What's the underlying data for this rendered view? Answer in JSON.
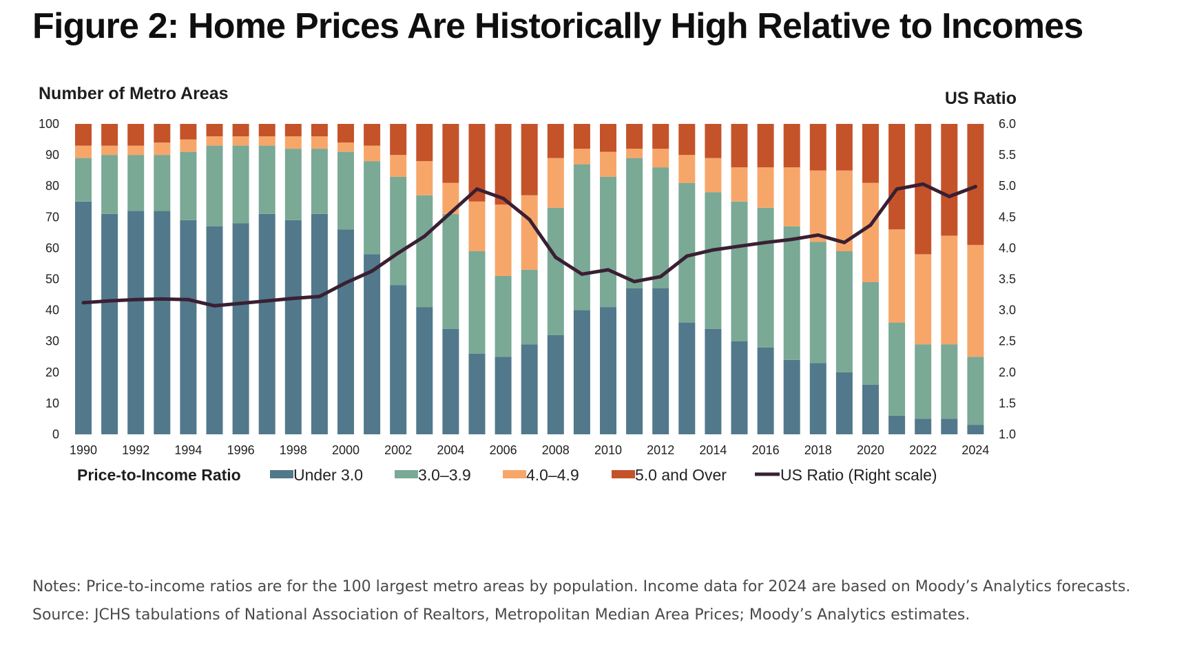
{
  "figure_title": "Figure 2: Home Prices Are Historically High Relative to Incomes",
  "notes": {
    "line1": "Notes: Price-to-income ratios are for the 100 largest metro areas by population. Income data for 2024 are based on Moody’s Analytics forecasts.",
    "line2": "Source: JCHS tabulations of National Association of Realtors, Metropolitan Median Area Prices; Moody’s Analytics estimates."
  },
  "chart_data": {
    "type": "bar",
    "stacked": true,
    "ylabel": "Number of Metro Areas",
    "y2label": "US Ratio",
    "ylim": [
      0,
      100
    ],
    "y2lim": [
      1.0,
      6.0
    ],
    "yticks": [
      0,
      10,
      20,
      30,
      40,
      50,
      60,
      70,
      80,
      90,
      100
    ],
    "y2ticks": [
      "1.0",
      "1.5",
      "2.0",
      "2.5",
      "3.0",
      "3.5",
      "4.0",
      "4.5",
      "5.0",
      "5.5",
      "6.0"
    ],
    "categories": [
      1990,
      1991,
      1992,
      1993,
      1994,
      1995,
      1996,
      1997,
      1998,
      1999,
      2000,
      2001,
      2002,
      2003,
      2004,
      2005,
      2006,
      2007,
      2008,
      2009,
      2010,
      2011,
      2012,
      2013,
      2014,
      2015,
      2016,
      2017,
      2018,
      2019,
      2020,
      2021,
      2022,
      2023,
      2024
    ],
    "xtick_labels": [
      "1990",
      "1992",
      "1994",
      "1996",
      "1998",
      "2000",
      "2002",
      "2004",
      "2006",
      "2008",
      "2010",
      "2012",
      "2014",
      "2016",
      "2018",
      "2020",
      "2022",
      "2024"
    ],
    "legend_title": "Price-to-Income Ratio",
    "legend_position": "bottom",
    "grid": false,
    "series": [
      {
        "name": "Under 3.0",
        "color": "#52788b",
        "values": [
          75,
          71,
          72,
          72,
          69,
          67,
          68,
          71,
          69,
          71,
          66,
          58,
          48,
          41,
          34,
          26,
          25,
          29,
          32,
          40,
          41,
          47,
          47,
          36,
          34,
          30,
          28,
          24,
          23,
          20,
          16,
          6,
          5,
          5,
          3
        ]
      },
      {
        "name": "3.0–3.9",
        "color": "#7aa996",
        "values": [
          14,
          19,
          18,
          18,
          22,
          26,
          25,
          22,
          23,
          21,
          25,
          30,
          35,
          36,
          37,
          33,
          26,
          24,
          41,
          47,
          42,
          42,
          39,
          45,
          44,
          45,
          45,
          43,
          39,
          39,
          33,
          30,
          24,
          24,
          22
        ]
      },
      {
        "name": "4.0–4.9",
        "color": "#f7a66a",
        "values": [
          4,
          3,
          3,
          4,
          4,
          3,
          3,
          3,
          4,
          4,
          3,
          5,
          7,
          11,
          10,
          16,
          23,
          24,
          16,
          5,
          8,
          3,
          6,
          9,
          11,
          11,
          13,
          19,
          23,
          26,
          32,
          30,
          29,
          35,
          36
        ]
      },
      {
        "name": "5.0 and Over",
        "color": "#c4532a",
        "values": [
          7,
          7,
          7,
          6,
          5,
          4,
          4,
          4,
          4,
          4,
          6,
          7,
          10,
          12,
          19,
          25,
          26,
          23,
          11,
          8,
          9,
          8,
          8,
          10,
          11,
          14,
          14,
          14,
          15,
          15,
          19,
          34,
          42,
          36,
          39
        ]
      }
    ],
    "line": {
      "name": "US Ratio (Right scale)",
      "axis": "right",
      "color": "#3a1f33",
      "values": [
        3.12,
        3.15,
        3.17,
        3.18,
        3.17,
        3.07,
        3.11,
        3.15,
        3.19,
        3.22,
        3.44,
        3.63,
        3.92,
        4.19,
        4.57,
        4.95,
        4.8,
        4.46,
        3.85,
        3.58,
        3.65,
        3.46,
        3.54,
        3.87,
        3.97,
        4.03,
        4.09,
        4.14,
        4.21,
        4.09,
        4.37,
        4.95,
        5.03,
        4.83,
        4.99
      ]
    }
  }
}
